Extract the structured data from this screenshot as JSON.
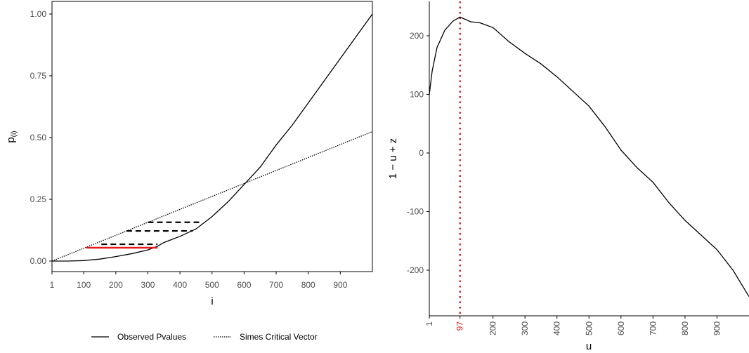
{
  "chart_data": [
    {
      "type": "line",
      "xlabel": "i",
      "ylabel_main": "p",
      "ylabel_sub": "(i)",
      "xlim": [
        1,
        1000
      ],
      "ylim": [
        0,
        1.0
      ],
      "x_ticks": [
        1,
        100,
        200,
        300,
        400,
        500,
        600,
        700,
        800,
        900
      ],
      "x_tick_labels": [
        "1",
        "100",
        "200",
        "300",
        "400",
        "500",
        "600",
        "700",
        "800",
        "900"
      ],
      "y_ticks": [
        0,
        0.25,
        0.5,
        0.75,
        1.0
      ],
      "y_tick_labels": [
        "0.00",
        "0.25",
        "0.50",
        "0.75",
        "1.00"
      ],
      "grid": false,
      "legend_position": "bottom",
      "series": [
        {
          "name": "Observed Pvalues",
          "style": "solid",
          "color": "#000000",
          "x": [
            1,
            50,
            100,
            150,
            200,
            250,
            300,
            330,
            350,
            400,
            450,
            500,
            550,
            600,
            650,
            700,
            750,
            800,
            850,
            900,
            950,
            1000
          ],
          "y": [
            0.0,
            0.0,
            0.002,
            0.008,
            0.018,
            0.03,
            0.045,
            0.06,
            0.075,
            0.1,
            0.13,
            0.18,
            0.24,
            0.31,
            0.38,
            0.47,
            0.55,
            0.64,
            0.73,
            0.82,
            0.91,
            1.0
          ]
        },
        {
          "name": "Simes Critical Vector",
          "style": "dotted",
          "color": "#000000",
          "x": [
            1,
            1000
          ],
          "y": [
            0.0,
            0.524
          ]
        }
      ],
      "segments": [
        {
          "style": "dashed",
          "color": "#000000",
          "x": [
            300,
            460
          ],
          "y": 0.157
        },
        {
          "style": "dashed",
          "color": "#000000",
          "x": [
            233,
            440
          ],
          "y": 0.122
        },
        {
          "style": "dashed",
          "color": "#000000",
          "x": [
            155,
            330
          ],
          "y": 0.068
        },
        {
          "style": "solid",
          "color": "#e41a1c",
          "x": [
            108,
            330
          ],
          "y": 0.054
        }
      ]
    },
    {
      "type": "line",
      "xlabel": "u",
      "ylabel": "1 − u + z",
      "xlim": [
        1,
        1000
      ],
      "ylim": [
        -270,
        260
      ],
      "x_ticks": [
        1,
        97,
        200,
        300,
        400,
        500,
        600,
        700,
        800,
        900
      ],
      "x_tick_labels": [
        "1",
        "97",
        "200",
        "300",
        "400",
        "500",
        "600",
        "700",
        "800",
        "900"
      ],
      "x_tick_label_colors": [
        "#4d4d4d",
        "#e41a1c",
        "#4d4d4d",
        "#4d4d4d",
        "#4d4d4d",
        "#4d4d4d",
        "#4d4d4d",
        "#4d4d4d",
        "#4d4d4d",
        "#4d4d4d"
      ],
      "y_ticks": [
        -200,
        -100,
        0,
        100,
        200
      ],
      "y_tick_labels": [
        "-200",
        "-100",
        "0",
        "100",
        "200"
      ],
      "grid": false,
      "series": [
        {
          "style": "solid",
          "color": "#000000",
          "x": [
            1,
            10,
            25,
            50,
            75,
            97,
            130,
            160,
            200,
            250,
            300,
            350,
            400,
            450,
            500,
            550,
            600,
            650,
            700,
            750,
            800,
            850,
            900,
            950,
            1000
          ],
          "y": [
            100,
            140,
            180,
            210,
            225,
            232,
            224,
            222,
            214,
            190,
            170,
            152,
            130,
            105,
            80,
            45,
            5,
            -25,
            -50,
            -85,
            -115,
            -140,
            -165,
            -200,
            -245
          ]
        }
      ],
      "vlines": [
        {
          "x": 97,
          "style": "dotted",
          "color": "#e41a1c"
        }
      ]
    }
  ],
  "legend": {
    "observed_label": "Observed Pvalues",
    "simes_label": "Simes Critical Vector"
  }
}
